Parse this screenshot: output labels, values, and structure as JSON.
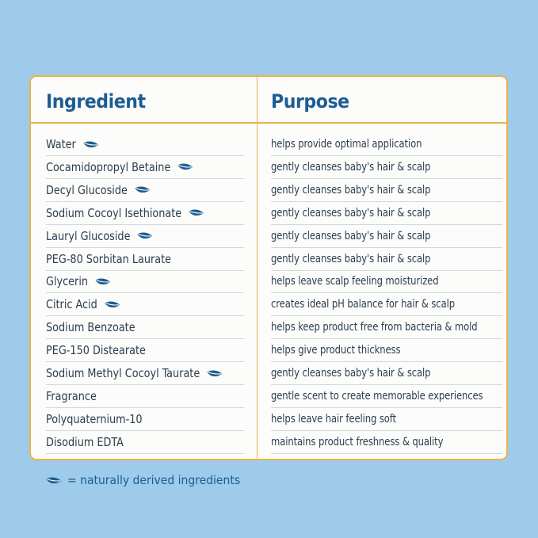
{
  "table": {
    "headers": {
      "ingredient": "Ingredient",
      "purpose": "Purpose"
    },
    "rows": [
      {
        "ingredient": "Water",
        "natural": true,
        "purpose": "helps provide optimal application"
      },
      {
        "ingredient": "Cocamidopropyl Betaine",
        "natural": true,
        "purpose": "gently cleanses baby's hair & scalp"
      },
      {
        "ingredient": "Decyl Glucoside",
        "natural": true,
        "purpose": "gently cleanses baby's hair & scalp"
      },
      {
        "ingredient": "Sodium Cocoyl Isethionate",
        "natural": true,
        "purpose": "gently cleanses baby's hair & scalp"
      },
      {
        "ingredient": "Lauryl Glucoside",
        "natural": true,
        "purpose": "gently cleanses baby's hair & scalp"
      },
      {
        "ingredient": "PEG-80 Sorbitan Laurate",
        "natural": false,
        "purpose": "gently cleanses baby's hair & scalp"
      },
      {
        "ingredient": "Glycerin",
        "natural": true,
        "purpose": "helps leave scalp feeling moisturized"
      },
      {
        "ingredient": "Citric Acid",
        "natural": true,
        "purpose": "creates ideal pH balance for hair & scalp"
      },
      {
        "ingredient": "Sodium Benzoate",
        "natural": false,
        "purpose": "helps keep product free from bacteria & mold"
      },
      {
        "ingredient": "PEG-150 Distearate",
        "natural": false,
        "purpose": "helps give product thickness"
      },
      {
        "ingredient": "Sodium Methyl Cocoyl Taurate",
        "natural": true,
        "purpose": "gently cleanses baby's hair & scalp"
      },
      {
        "ingredient": "Fragrance",
        "natural": false,
        "purpose": "gentle scent to create memorable experiences"
      },
      {
        "ingredient": "Polyquaternium-10",
        "natural": false,
        "purpose": "helps leave hair feeling soft"
      },
      {
        "ingredient": "Disodium EDTA",
        "natural": false,
        "purpose": "maintains product freshness & quality"
      }
    ]
  },
  "legend": {
    "icon": "leaf-icon",
    "text": "= naturally derived ingredients"
  },
  "colors": {
    "background": "#9fcbeb",
    "card": "#fcfcfa",
    "border": "#e9b34c",
    "heading": "#1c5d93",
    "leaf": "#1c5d93",
    "text": "#2c3e50"
  }
}
